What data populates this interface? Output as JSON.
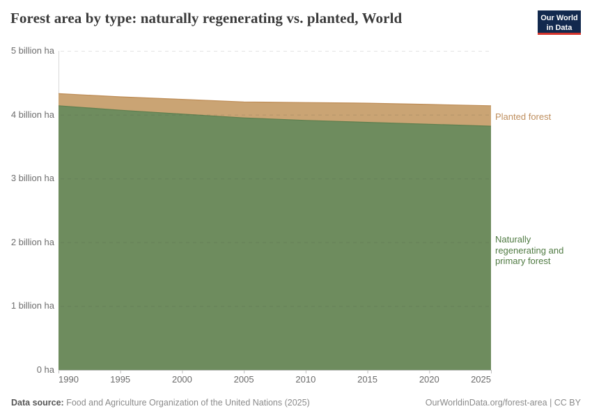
{
  "header": {
    "title": "Forest area by type: naturally regenerating vs. planted, World"
  },
  "logo": {
    "line1": "Our World",
    "line2": "in Data",
    "bg_color": "#12294E",
    "stripe_color": "#D4342C"
  },
  "footer": {
    "source_prefix": "Data source:",
    "source_text": "Food and Agriculture Organization of the United Nations (2025)",
    "credit": "OurWorldinData.org/forest-area | CC BY"
  },
  "chart_data": {
    "type": "area",
    "stacked": true,
    "title": "Forest area by type: naturally regenerating vs. planted, World",
    "unit": "billion ha",
    "x": [
      1990,
      1995,
      2000,
      2005,
      2010,
      2015,
      2020,
      2025
    ],
    "x_tick_labels": [
      "1990",
      "1995",
      "2000",
      "2005",
      "2010",
      "2015",
      "2020",
      "2025"
    ],
    "y_ticks": [
      {
        "value": 0,
        "label": "0 ha"
      },
      {
        "value": 1,
        "label": "1 billion ha"
      },
      {
        "value": 2,
        "label": "2 billion ha"
      },
      {
        "value": 3,
        "label": "3 billion ha"
      },
      {
        "value": 4,
        "label": "4 billion ha"
      },
      {
        "value": 5,
        "label": "5 billion ha"
      }
    ],
    "xlim": [
      1990,
      2025
    ],
    "ylim": [
      0,
      5
    ],
    "grid": "dashed-horizontal",
    "legend_position": "labels-right-of-areas",
    "series": [
      {
        "name": "Naturally regenerating and primary forest",
        "values": [
          4.14,
          4.07,
          4.01,
          3.95,
          3.91,
          3.88,
          3.85,
          3.82
        ],
        "fill_color": "#6E8C5E",
        "edge_color": "#5E7F4F",
        "label_color": "#4F7A42"
      },
      {
        "name": "Planted forest",
        "values": [
          0.19,
          0.21,
          0.23,
          0.25,
          0.28,
          0.3,
          0.31,
          0.32
        ],
        "fill_color": "#CAA474",
        "edge_color": "#BE8C55",
        "label_color": "#BE8E5D"
      }
    ]
  }
}
